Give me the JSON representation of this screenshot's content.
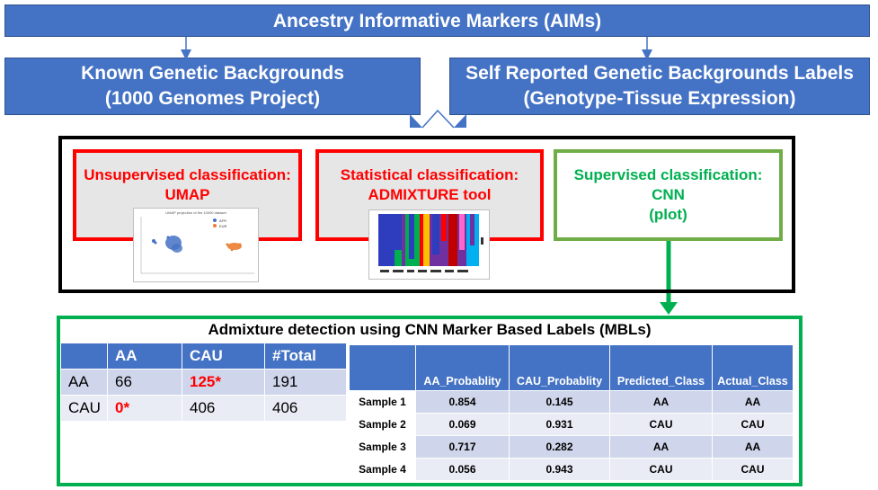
{
  "header": {
    "title": "Ancestry Informative Markers (AIMs)"
  },
  "sources": {
    "known": {
      "line1": "Known Genetic Backgrounds",
      "line2": "(1000 Genomes Project)"
    },
    "self_reported": {
      "line1": "Self Reported Genetic Backgrounds Labels",
      "line2": "(Genotype-Tissue Expression)"
    }
  },
  "methods": {
    "unsupervised": {
      "line1": "Unsupervised classification:",
      "line2": "UMAP",
      "thumb_title": "UMAP projection of the 10000 dataset",
      "legend": [
        "AFR",
        "EUR"
      ]
    },
    "statistical": {
      "line1": "Statistical classification:",
      "line2": "ADMIXTURE tool"
    },
    "supervised": {
      "line1": "Supervised classification:",
      "line2": "CNN",
      "line3": "(plot)"
    }
  },
  "result": {
    "title": "Admixture detection using CNN Marker Based Labels (MBLs)",
    "confusion": {
      "headers": [
        "",
        "AA",
        "CAU",
        "#Total"
      ],
      "rows": [
        {
          "label": "AA",
          "aa": "66",
          "cau": "125*",
          "total": "191"
        },
        {
          "label": "CAU",
          "aa": "0*",
          "cau": "406",
          "total": "406"
        }
      ]
    },
    "probabilities": {
      "headers": [
        "",
        "AA_Probablity",
        "CAU_Probablity",
        "Predicted_Class",
        "Actual_Class"
      ],
      "rows": [
        {
          "sample": "Sample 1",
          "aa": "0.854",
          "cau": "0.145",
          "pred": "AA",
          "actual": "AA"
        },
        {
          "sample": "Sample 2",
          "aa": "0.069",
          "cau": "0.931",
          "pred": "CAU",
          "actual": "CAU"
        },
        {
          "sample": "Sample 3",
          "aa": "0.717",
          "cau": "0.282",
          "pred": "AA",
          "actual": "AA"
        },
        {
          "sample": "Sample 4",
          "aa": "0.056",
          "cau": "0.943",
          "pred": "CAU",
          "actual": "CAU"
        }
      ]
    }
  },
  "colors": {
    "blue": "#4472c4",
    "red": "#ff0000",
    "green": "#00b050",
    "green_border": "#70ad47"
  }
}
